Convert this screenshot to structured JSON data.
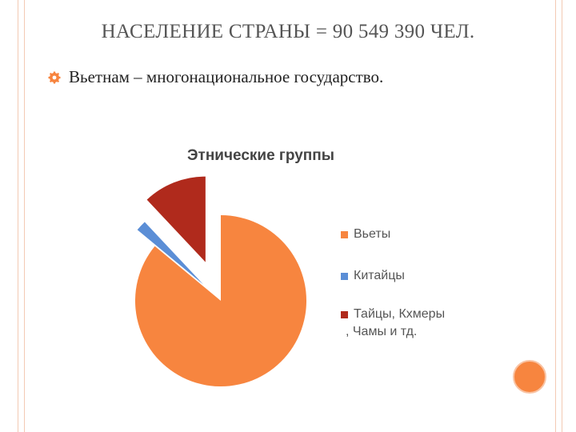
{
  "slide": {
    "title": "НАСЕЛЕНИЕ СТРАНЫ = 90 549 390 ЧЕЛ.",
    "bullet": "Вьетнам – многонациональное государство.",
    "bullet_icon": "gear-bullet-icon",
    "accent_color": "#f7853f",
    "rule_color": "#f3c9b4"
  },
  "chart_data": {
    "type": "pie",
    "title": "Этнические группы",
    "legend_position": "right",
    "exploded": true,
    "slices": [
      {
        "name": "Вьеты",
        "value": 86,
        "color": "#f7853f"
      },
      {
        "name": "Китайцы",
        "value": 2,
        "color": "#5b8ed6"
      },
      {
        "name": "Тайцы, Кхмеры , Чамы и тд.",
        "value": 12,
        "color": "#b02a1c"
      }
    ],
    "legend_lines": [
      [
        "Вьеты"
      ],
      [
        "Китайцы"
      ],
      [
        "Тайцы, Кхмеры",
        ", Чамы и тд."
      ]
    ]
  }
}
